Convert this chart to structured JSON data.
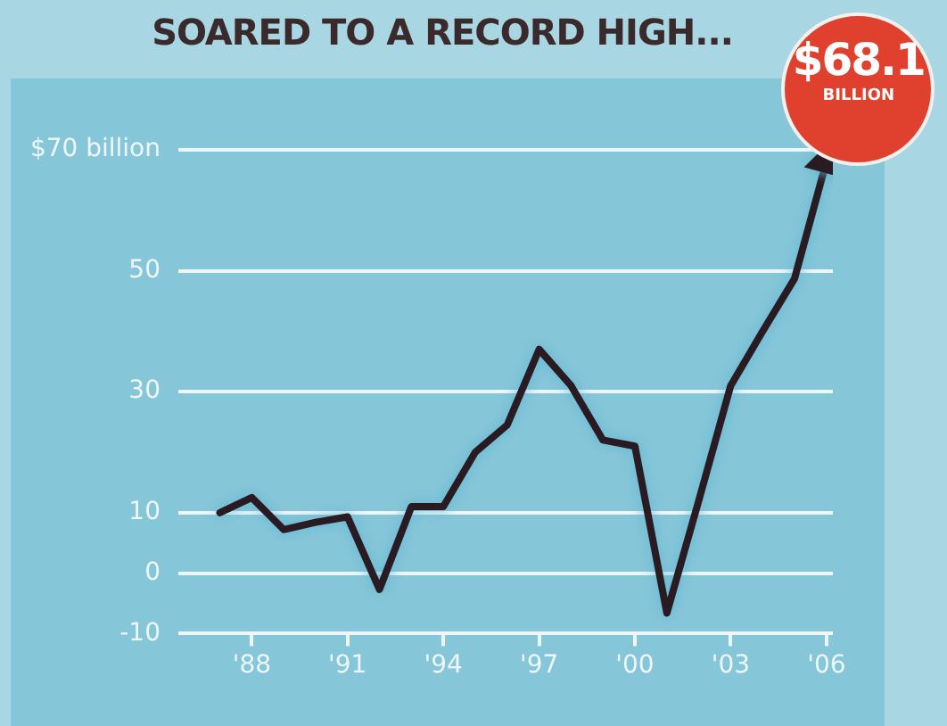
{
  "chart_data": {
    "type": "line",
    "title": "SOARED TO A RECORD HIGH...",
    "x": [
      1987,
      1988,
      1989,
      1990,
      1991,
      1992,
      1993,
      1994,
      1995,
      1996,
      1997,
      1998,
      1999,
      2000,
      2001,
      2002,
      2003,
      2004,
      2005,
      2006
    ],
    "series": [
      {
        "color": "#2a1a22",
        "values": [
          10,
          12.5,
          7.2,
          8.4,
          9.3,
          -2.7,
          11,
          11,
          20,
          24.5,
          37,
          31,
          22,
          21,
          -6.6,
          12,
          31,
          40,
          48.7,
          68.1
        ]
      }
    ],
    "xlim": [
      1985.7,
      2006.2
    ],
    "xticks": [
      {
        "value": 1988,
        "label": "'88"
      },
      {
        "value": 1991,
        "label": "'91"
      },
      {
        "value": 1994,
        "label": "'94"
      },
      {
        "value": 1997,
        "label": "'97"
      },
      {
        "value": 2000,
        "label": "'00"
      },
      {
        "value": 2003,
        "label": "'03"
      },
      {
        "value": 2006,
        "label": "'06"
      }
    ],
    "ylim": [
      -10,
      70
    ],
    "yticks": [
      -10,
      0,
      10,
      30,
      50,
      {
        "value": 70,
        "label": "$70 billion"
      }
    ],
    "annotations": [
      {
        "text": "$68.1 BILLION",
        "x": 2006,
        "y": 68.1
      }
    ],
    "grid": "y",
    "legend": false,
    "marker": "none",
    "line_style": "solid"
  }
}
